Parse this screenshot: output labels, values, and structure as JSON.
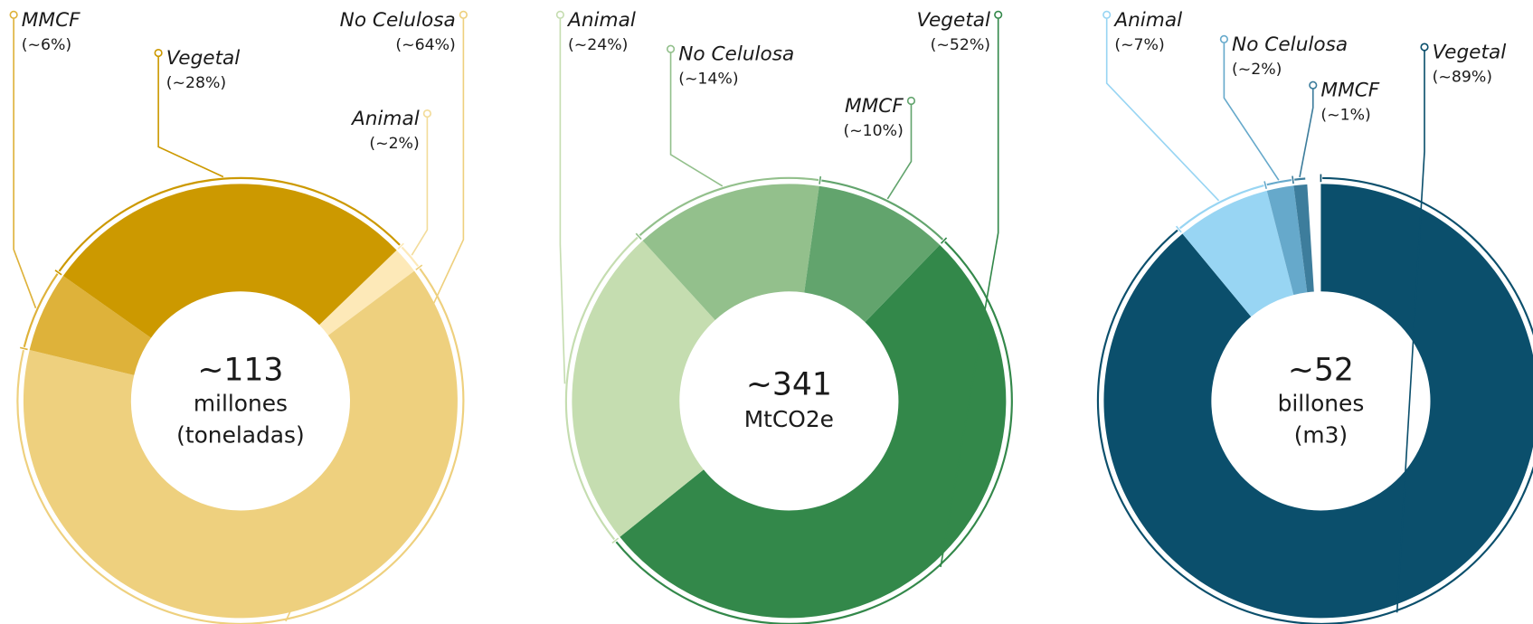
{
  "chart_data": [
    {
      "type": "pie",
      "categories": [
        "Animal",
        "No Celulosa",
        "MMCF",
        "Vegetal"
      ],
      "values": [
        2,
        64,
        6,
        28
      ],
      "value_labels": [
        "(~2%)",
        "(~64%)",
        "(~6%)",
        "(~28%)"
      ],
      "colors": [
        "#fde9b8",
        "#eed07e",
        "#deb23a",
        "#cc9900"
      ],
      "center_text": [
        "~113",
        "millones",
        "(toneladas)"
      ]
    },
    {
      "type": "pie",
      "categories": [
        "Vegetal",
        "Animal",
        "No Celulosa",
        "MMCF"
      ],
      "values": [
        52,
        24,
        14,
        10
      ],
      "value_labels": [
        "(~52%)",
        "(~24%)",
        "(~14%)",
        "(~10%)"
      ],
      "colors": [
        "#33884a",
        "#c5ddb0",
        "#93c08c",
        "#62a46d"
      ],
      "center_text": [
        "~341",
        "MtCO2e"
      ]
    },
    {
      "type": "pie",
      "categories": [
        "Vegetal",
        "Animal",
        "No Celulosa",
        "MMCF"
      ],
      "values": [
        89,
        7,
        2,
        1
      ],
      "value_labels": [
        "(~89%)",
        "(~7%)",
        "(~2%)",
        "(~1%)"
      ],
      "colors": [
        "#0b4f6c",
        "#98d5f3",
        "#66a9cb",
        "#3d7d9c"
      ],
      "center_text": [
        "~52",
        "billones",
        "(m3)"
      ]
    }
  ]
}
